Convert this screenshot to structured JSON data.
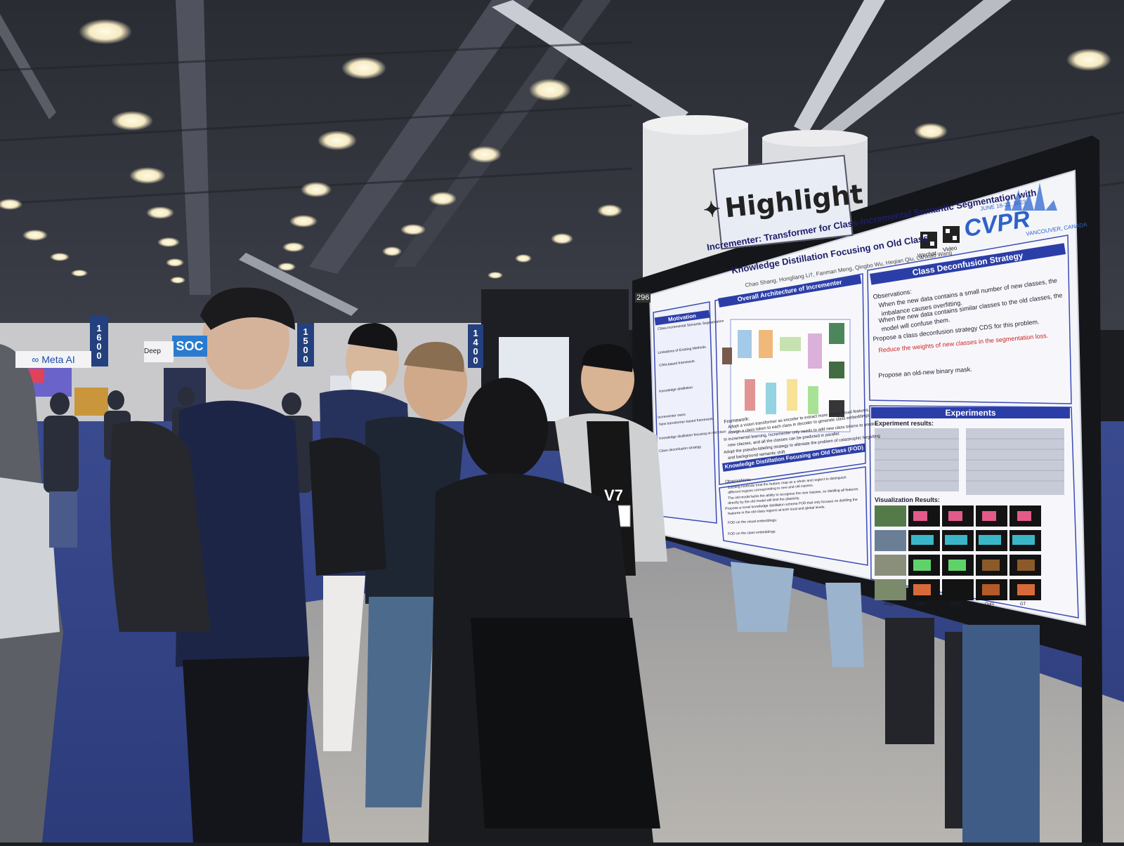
{
  "scene": {
    "highlight_sign": "Highlight",
    "booth_number": "296",
    "banners": [
      "1600",
      "1500",
      "1400"
    ],
    "meta_sign": "Meta AI",
    "soc_sign": "SOC",
    "deep_sign": "Deep Lea",
    "badge_text": "V7"
  },
  "poster": {
    "title_line1": "Incrementer: Transformer for Class-Incremental Semantic Segmentation with",
    "title_line2": "Knowledge Distillation Focusing on Old Class",
    "authors": "Chao Shang, Hongliang Li†, Fanman Meng, Qingbo Wu, Heqian Qiu, Lanxiao Wang",
    "conference": "CVPR",
    "dates": "JUNE 18-22, 2023",
    "location": "VANCOUVER, CANADA",
    "qr_labels": [
      "Wechat",
      "Video"
    ],
    "sections": {
      "motivation": "Motivation",
      "overall": "Overall Architecture of Incrementer",
      "class_deconfusion": "Class Deconfusion Strategy",
      "experiments": "Experiments",
      "kd": "Knowledge Distillation Focusing on Old Class (FOD)",
      "experiment_results": "Experiment results:",
      "visualization": "Visualization Results:"
    },
    "cds_lines": [
      "Observations:",
      "When the new data contains a small number of new classes, the",
      "imbalance causes overfitting.",
      "When the new data contains similar classes to the old classes, the",
      "model will confuse them.",
      "Propose a class deconfusion strategy CDS for this problem.",
      "Reduce the weights of new classes in the segmentation loss.",
      "Propose an old-new binary mask."
    ],
    "framework_lines": [
      "Framework:",
      "Adopt a vision transformer as encoder to extract more global visual features.",
      "Assign a class token to each class in decoder to generate class embeddings.",
      "In incremental learning, Incrementer only needs to add new class tokens to predict",
      "new classes, and all the classes can be predicted in parallel.",
      "Adopt the pseudo-labeling strategy to alleviate the problem of catastrophic forgetting",
      "and background semantic shift."
    ],
    "motivation_lines": [
      "Class-Incremental Semantic Segmentation",
      "Limitations of Existing Methods",
      "CNN-based framework",
      "Knowledge distillation",
      "Incrementer owns",
      "New transformer-based framework",
      "Knowledge distillation focusing on old class",
      "Class deconfusion strategy"
    ],
    "kd_lines": [
      "Observations:",
      "Existing methods treat the feature map as a whole and neglect to distinguish",
      "different regions corresponding to new and old classes.",
      "The old model lacks the ability to recognize the new classes, so distilling all features",
      "directly by the old model will limit the plasticity.",
      "Propose a novel knowledge distillation scheme FOD that only focuses on distilling the",
      "features in the old-class regions at both local and global levels.",
      "FOD on the visual embeddings:",
      "FOD on the class embeddings:"
    ],
    "vis_labels": [
      "Image",
      "MiB*",
      "RBC*",
      "Ours",
      "GT"
    ]
  }
}
